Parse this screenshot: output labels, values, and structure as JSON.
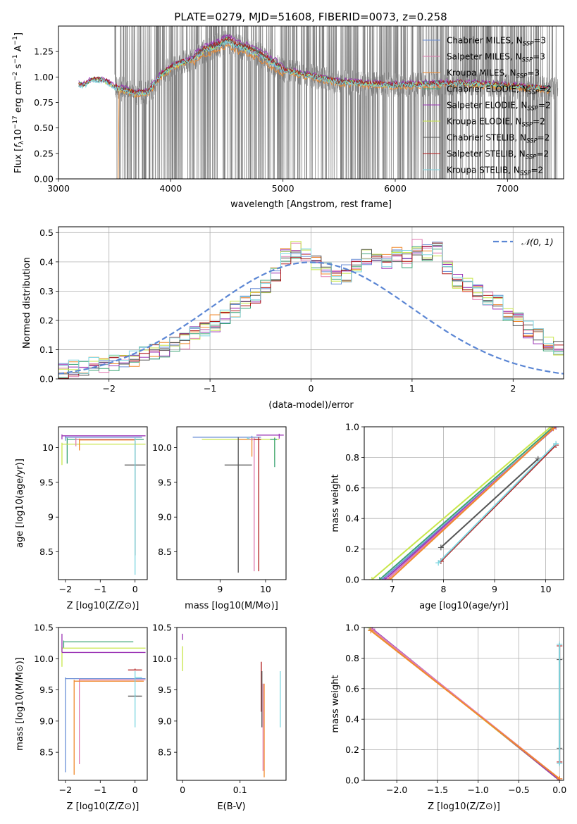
{
  "figure_title": "PLATE=0279, MJD=51608, FIBERID=0073, z=0.258",
  "models": [
    {
      "name": "Chabrier MILES, N",
      "sub": "SSP",
      "suffix": "=3",
      "color": "#6b8fd6"
    },
    {
      "name": "Salpeter MILES, N",
      "sub": "SSP",
      "suffix": "=3",
      "color": "#e07ab0"
    },
    {
      "name": "Kroupa MILES, N",
      "sub": "SSP",
      "suffix": "=3",
      "color": "#f08a2c"
    },
    {
      "name": "Chabrier ELODIE, N",
      "sub": "SSP",
      "suffix": "=2",
      "color": "#3aa374"
    },
    {
      "name": "Salpeter ELODIE, N",
      "sub": "SSP",
      "suffix": "=2",
      "color": "#9b35b5"
    },
    {
      "name": "Kroupa ELODIE, N",
      "sub": "SSP",
      "suffix": "=2",
      "color": "#c8e64a"
    },
    {
      "name": "Chabrier STELIB, N",
      "sub": "SSP",
      "suffix": "=2",
      "color": "#555555"
    },
    {
      "name": "Salpeter STELIB, N",
      "sub": "SSP",
      "suffix": "=2",
      "color": "#b01818"
    },
    {
      "name": "Kroupa STELIB, N",
      "sub": "SSP",
      "suffix": "=2",
      "color": "#7dd6e0"
    }
  ],
  "chart_data": [
    {
      "id": "spectrum",
      "type": "line",
      "xlabel": "wavelength [Angstrom, rest frame]",
      "ylabel": "Flux [f_λ 10^-17 erg cm^-2 s^-1 A^-1]",
      "xlim": [
        3000,
        7500
      ],
      "ylim": [
        0,
        1.5
      ],
      "xticks": [
        3000,
        4000,
        5000,
        6000,
        7000
      ],
      "yticks": [
        0.0,
        0.25,
        0.5,
        0.75,
        1.0,
        1.25
      ],
      "ytick_labels": [
        "0.00",
        "0.25",
        "0.50",
        "0.75",
        "1.00",
        "1.25"
      ],
      "legend_position": "top-right",
      "data_color": "#808080",
      "data_x": [
        3500,
        7450
      ],
      "continuum": [
        [
          3180,
          0.92
        ],
        [
          3230,
          0.92
        ],
        [
          3300,
          0.97
        ],
        [
          3400,
          0.97
        ],
        [
          3500,
          0.9
        ],
        [
          3600,
          0.87
        ],
        [
          3700,
          0.84
        ],
        [
          3800,
          0.85
        ],
        [
          3900,
          1.0
        ],
        [
          3950,
          1.05
        ],
        [
          4050,
          1.12
        ],
        [
          4200,
          1.18
        ],
        [
          4300,
          1.26
        ],
        [
          4450,
          1.32
        ],
        [
          4500,
          1.36
        ],
        [
          4600,
          1.3
        ],
        [
          4700,
          1.27
        ],
        [
          4850,
          1.18
        ],
        [
          5000,
          1.07
        ],
        [
          5200,
          1.02
        ],
        [
          5500,
          0.95
        ],
        [
          5800,
          0.93
        ],
        [
          6000,
          0.92
        ],
        [
          6300,
          0.93
        ],
        [
          6600,
          0.94
        ],
        [
          6900,
          0.92
        ],
        [
          7200,
          0.9
        ],
        [
          7380,
          0.88
        ]
      ],
      "model_offsets": [
        0.0,
        0.01,
        -0.05,
        0.02,
        0.05,
        0.0,
        0.01,
        0.02,
        -0.01
      ]
    },
    {
      "id": "residuals",
      "type": "histogram",
      "xlabel": "(data-model)/error",
      "ylabel": "Normed distribution",
      "xlim": [
        -2.5,
        2.5
      ],
      "ylim": [
        0,
        0.52
      ],
      "xticks": [
        -2,
        -1,
        0,
        1,
        2
      ],
      "yticks": [
        0.0,
        0.1,
        0.2,
        0.3,
        0.4,
        0.5
      ],
      "grid": true,
      "legend_position": "top-right",
      "legend_label": "N(0,1)",
      "gaussian_color": "#5b86d4",
      "bin_width": 0.1,
      "bin_start": -2.5,
      "base_heights": [
        0.03,
        0.035,
        0.04,
        0.045,
        0.05,
        0.055,
        0.065,
        0.07,
        0.08,
        0.09,
        0.1,
        0.12,
        0.13,
        0.15,
        0.17,
        0.19,
        0.21,
        0.24,
        0.26,
        0.28,
        0.32,
        0.36,
        0.42,
        0.44,
        0.42,
        0.4,
        0.37,
        0.35,
        0.36,
        0.39,
        0.42,
        0.41,
        0.4,
        0.42,
        0.41,
        0.45,
        0.43,
        0.44,
        0.38,
        0.34,
        0.32,
        0.3,
        0.28,
        0.26,
        0.22,
        0.2,
        0.17,
        0.15,
        0.12,
        0.1
      ]
    },
    {
      "id": "age_vs_Z",
      "type": "errorbar",
      "xlabel": "Z [log10(Z/Z⊙)]",
      "ylabel": "age [log10(age/yr)]",
      "xlim": [
        -2.2,
        0.35
      ],
      "ylim": [
        8.1,
        10.3
      ],
      "xticks": [
        -2,
        -1,
        0
      ],
      "yticks": [
        8.5,
        9.0,
        9.5,
        10.0
      ],
      "points": [
        {
          "model": 0,
          "x": -2.0,
          "y": 10.15,
          "xerr": [
            0.0,
            2.2
          ],
          "yerr": [
            0.05,
            0.02
          ]
        },
        {
          "model": 3,
          "x": -1.95,
          "y": 10.12,
          "xerr": [
            0.0,
            2.2
          ],
          "yerr": [
            0.35,
            0.02
          ]
        },
        {
          "model": 5,
          "x": -2.1,
          "y": 10.05,
          "xerr": [
            0.0,
            2.4
          ],
          "yerr": [
            0.3,
            0.02
          ]
        },
        {
          "model": 4,
          "x": -2.1,
          "y": 10.17,
          "xerr": [
            0.0,
            2.4
          ],
          "yerr": [
            0.05,
            0.02
          ]
        },
        {
          "model": 1,
          "x": -1.7,
          "y": 10.12,
          "xerr": [
            0.0,
            1.7
          ],
          "yerr": [
            0.1,
            0.02
          ]
        },
        {
          "model": 2,
          "x": -1.6,
          "y": 10.11,
          "xerr": [
            0.0,
            1.6
          ],
          "yerr": [
            0.15,
            0.02
          ]
        },
        {
          "model": 6,
          "x": 0.0,
          "y": 9.75,
          "xerr": [
            0.3,
            0.3
          ],
          "yerr": [
            1.3,
            0.35
          ]
        },
        {
          "model": 8,
          "x": 0.0,
          "y": 10.12,
          "xerr": [
            0.0,
            0.0
          ],
          "yerr": [
            1.95,
            0.03
          ]
        }
      ]
    },
    {
      "id": "age_vs_mass",
      "type": "errorbar",
      "xlabel": "mass [log10(M/M⊙)]",
      "ylabel": "",
      "xlim": [
        8.05,
        10.45
      ],
      "ylim": [
        8.1,
        10.3
      ],
      "xticks": [
        9,
        10
      ],
      "yticks": [
        8.5,
        9.0,
        9.5,
        10.0
      ],
      "points": [
        {
          "model": 0,
          "x": 9.7,
          "y": 10.15,
          "xerr": [
            1.3,
            0.2
          ],
          "yerr": [
            0.05,
            0.02
          ]
        },
        {
          "model": 5,
          "x": 10.2,
          "y": 10.12,
          "xerr": [
            1.6,
            0.1
          ],
          "yerr": [
            0.3,
            0.03
          ]
        },
        {
          "model": 4,
          "x": 10.3,
          "y": 10.18,
          "xerr": [
            0.5,
            0.1
          ],
          "yerr": [
            0.05,
            0.02
          ]
        },
        {
          "model": 2,
          "x": 9.7,
          "y": 10.12,
          "xerr": [
            0.3,
            0.1
          ],
          "yerr": [
            0.25,
            0.02
          ]
        },
        {
          "model": 1,
          "x": 9.75,
          "y": 10.12,
          "xerr": [
            0.1,
            0.05
          ],
          "yerr": [
            1.9,
            0.03
          ]
        },
        {
          "model": 3,
          "x": 10.2,
          "y": 10.12,
          "xerr": [
            0.1,
            0.05
          ],
          "yerr": [
            0.4,
            0.02
          ]
        },
        {
          "model": 6,
          "x": 9.4,
          "y": 9.75,
          "xerr": [
            0.3,
            0.3
          ],
          "yerr": [
            1.55,
            0.4
          ]
        },
        {
          "model": 7,
          "x": 9.85,
          "y": 10.12,
          "xerr": [
            0.1,
            0.05
          ],
          "yerr": [
            1.9,
            0.03
          ]
        },
        {
          "model": 8,
          "x": 9.6,
          "y": 10.13,
          "xerr": [
            0.0,
            0.05
          ],
          "yerr": [
            0.0,
            0.02
          ]
        }
      ]
    },
    {
      "id": "massweight_vs_age",
      "type": "line",
      "xlabel": "age [log10(age/yr)]",
      "ylabel": "mass weight",
      "xlim": [
        6.45,
        10.35
      ],
      "ylim": [
        0.0,
        1.0
      ],
      "xticks": [
        7,
        8,
        9,
        10
      ],
      "yticks": [
        0.0,
        0.2,
        0.4,
        0.6,
        0.8,
        1.0
      ],
      "grid": true,
      "series": [
        {
          "model": 5,
          "points": [
            [
              6.6,
              0.0
            ],
            [
              10.1,
              1.0
            ]
          ]
        },
        {
          "model": 3,
          "points": [
            [
              6.75,
              0.0
            ],
            [
              10.15,
              1.0
            ]
          ]
        },
        {
          "model": 0,
          "points": [
            [
              6.8,
              0.0
            ],
            [
              10.2,
              1.0
            ]
          ]
        },
        {
          "model": 4,
          "points": [
            [
              6.85,
              0.0
            ],
            [
              10.2,
              1.0
            ]
          ]
        },
        {
          "model": 1,
          "points": [
            [
              6.9,
              0.0
            ],
            [
              10.15,
              0.99
            ]
          ]
        },
        {
          "model": 2,
          "points": [
            [
              6.95,
              0.0
            ],
            [
              10.15,
              0.99
            ]
          ]
        },
        {
          "model": 6,
          "points": [
            [
              7.95,
              0.21
            ],
            [
              9.85,
              0.79
            ]
          ]
        },
        {
          "model": 7,
          "points": [
            [
              7.95,
              0.12
            ],
            [
              10.2,
              0.88
            ]
          ]
        },
        {
          "model": 8,
          "points": [
            [
              7.9,
              0.11
            ],
            [
              10.2,
              0.89
            ]
          ]
        }
      ]
    },
    {
      "id": "mass_vs_Z",
      "type": "errorbar",
      "xlabel": "Z [log10(Z/Z⊙)]",
      "ylabel": "mass [log10(M/M⊙)]",
      "xlim": [
        -2.2,
        0.35
      ],
      "ylim": [
        8.05,
        10.5
      ],
      "xticks": [
        -2,
        -1,
        0
      ],
      "yticks": [
        8.5,
        9.0,
        9.5,
        10.0,
        10.5
      ],
      "points": [
        {
          "model": 3,
          "x": -2.05,
          "y": 10.27,
          "xerr": [
            0.0,
            2.0
          ],
          "yerr": [
            0.1,
            0.02
          ]
        },
        {
          "model": 5,
          "x": -2.1,
          "y": 10.17,
          "xerr": [
            0.0,
            2.4
          ],
          "yerr": [
            0.3,
            0.02
          ]
        },
        {
          "model": 4,
          "x": -2.1,
          "y": 10.1,
          "xerr": [
            0.0,
            2.4
          ],
          "yerr": [
            0.0,
            0.3
          ]
        },
        {
          "model": 0,
          "x": -2.0,
          "y": 9.68,
          "xerr": [
            0.0,
            2.3
          ],
          "yerr": [
            1.5,
            0.02
          ]
        },
        {
          "model": 1,
          "x": -1.6,
          "y": 9.66,
          "xerr": [
            0.0,
            1.9
          ],
          "yerr": [
            1.35,
            0.02
          ]
        },
        {
          "model": 2,
          "x": -1.75,
          "y": 9.64,
          "xerr": [
            0.0,
            2.0
          ],
          "yerr": [
            1.5,
            0.02
          ]
        },
        {
          "model": 7,
          "x": 0.0,
          "y": 9.82,
          "xerr": [
            0.2,
            0.2
          ],
          "yerr": [
            0.0,
            0.02
          ]
        },
        {
          "model": 6,
          "x": 0.0,
          "y": 9.4,
          "xerr": [
            0.2,
            0.2
          ],
          "yerr": [
            0.0,
            0.02
          ]
        },
        {
          "model": 8,
          "x": 0.0,
          "y": 9.7,
          "xerr": [
            0.0,
            0.2
          ],
          "yerr": [
            0.8,
            0.1
          ]
        }
      ]
    },
    {
      "id": "mass_vs_EBV",
      "type": "errorbar",
      "xlabel": "E(B-V)",
      "ylabel": "",
      "xlim": [
        -0.01,
        0.18
      ],
      "ylim": [
        8.05,
        10.5
      ],
      "xticks": [
        0.0,
        0.1
      ],
      "yticks": [
        8.5,
        9.0,
        9.5,
        10.0,
        10.5
      ],
      "points": [
        {
          "model": 4,
          "x": 0.0,
          "y": 10.35,
          "xerr": [
            0,
            0
          ],
          "yerr": [
            0.05,
            0.05
          ]
        },
        {
          "model": 5,
          "x": 0.0,
          "y": 10.0,
          "xerr": [
            0,
            0
          ],
          "yerr": [
            0.2,
            0.2
          ]
        },
        {
          "model": 7,
          "x": 0.137,
          "y": 9.55,
          "xerr": [
            0,
            0
          ],
          "yerr": [
            0.4,
            0.4
          ]
        },
        {
          "model": 6,
          "x": 0.138,
          "y": 9.35,
          "xerr": [
            0,
            0
          ],
          "yerr": [
            0.45,
            0.45
          ]
        },
        {
          "model": 1,
          "x": 0.14,
          "y": 8.9,
          "xerr": [
            0,
            0
          ],
          "yerr": [
            0.7,
            0.7
          ]
        },
        {
          "model": 2,
          "x": 0.142,
          "y": 8.85,
          "xerr": [
            0,
            0
          ],
          "yerr": [
            0.75,
            0.75
          ]
        },
        {
          "model": 8,
          "x": 0.17,
          "y": 9.35,
          "xerr": [
            0,
            0
          ],
          "yerr": [
            0.45,
            0.45
          ]
        }
      ]
    },
    {
      "id": "massweight_vs_Z",
      "type": "line",
      "xlabel": "Z [log10(Z/Z⊙)]",
      "ylabel": "mass weight",
      "xlim": [
        -2.4,
        0.05
      ],
      "ylim": [
        0.0,
        1.0
      ],
      "xticks": [
        -2.0,
        -1.5,
        -1.0,
        -0.5,
        0.0
      ],
      "xtick_labels": [
        "−2.0",
        "−1.5",
        "−1.0",
        "−0.5",
        "0.0"
      ],
      "yticks": [
        0.0,
        0.2,
        0.4,
        0.6,
        0.8,
        1.0
      ],
      "grid": true,
      "series": [
        {
          "model": 0,
          "points": [
            [
              -2.32,
              1.0
            ],
            [
              0.0,
              0.0
            ]
          ]
        },
        {
          "model": 3,
          "points": [
            [
              -2.33,
              1.0
            ],
            [
              0.0,
              0.0
            ]
          ]
        },
        {
          "model": 5,
          "points": [
            [
              -2.34,
              1.0
            ],
            [
              0.0,
              0.0
            ]
          ]
        },
        {
          "model": 4,
          "points": [
            [
              -2.3,
              0.99
            ],
            [
              0.0,
              0.0
            ]
          ]
        },
        {
          "model": 1,
          "points": [
            [
              -2.31,
              0.99
            ],
            [
              0.0,
              0.01
            ]
          ]
        },
        {
          "model": 2,
          "points": [
            [
              -2.32,
              0.98
            ],
            [
              0.0,
              0.01
            ]
          ]
        },
        {
          "model": 7,
          "points": [
            [
              0.0,
              0.12
            ],
            [
              0.0,
              0.88
            ]
          ]
        },
        {
          "model": 6,
          "points": [
            [
              0.0,
              0.21
            ],
            [
              0.0,
              0.79
            ]
          ]
        },
        {
          "model": 8,
          "points": [
            [
              0.0,
              0.11
            ],
            [
              0.0,
              0.89
            ]
          ]
        }
      ]
    }
  ]
}
